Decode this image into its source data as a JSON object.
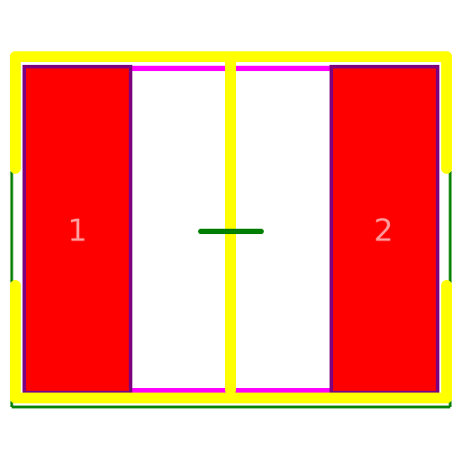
{
  "footprint": {
    "pads": [
      {
        "id": "pad-1",
        "label": "1"
      },
      {
        "id": "pad-2",
        "label": "2"
      }
    ],
    "colors": {
      "pad": "#ff0000",
      "pad_outline": "#800080",
      "body_fill": "#ffffff",
      "fab_outline": "#ff00ff",
      "silkscreen": "#ffff00",
      "courtyard": "#008000",
      "pad_label": "#ff9999"
    }
  }
}
